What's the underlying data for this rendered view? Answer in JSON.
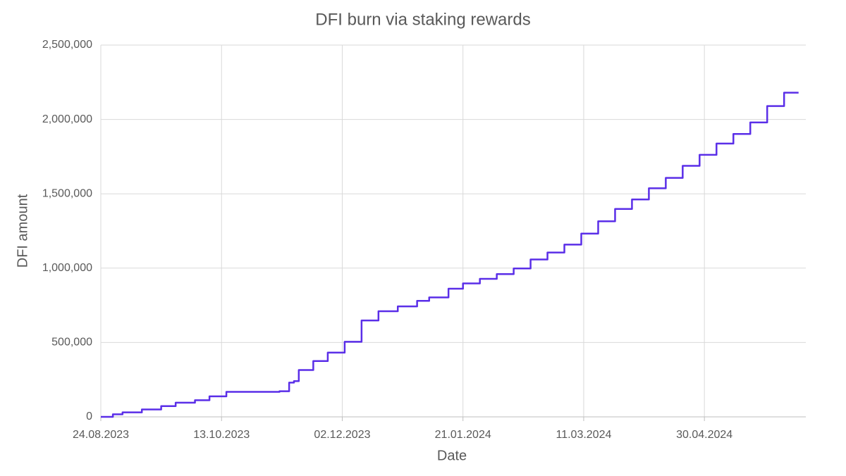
{
  "chart_data": {
    "type": "line",
    "step": "post",
    "title": "DFI burn via staking rewards",
    "x_label": "Date",
    "y_label": "DFI amount",
    "color": "#5a2ee8",
    "grid": true,
    "x": [
      "24.08.2023",
      "29.08.2023",
      "02.09.2023",
      "10.09.2023",
      "18.09.2023",
      "24.09.2023",
      "02.10.2023",
      "08.10.2023",
      "15.10.2023",
      "06.11.2023",
      "10.11.2023",
      "12.11.2023",
      "14.11.2023",
      "20.11.2023",
      "26.11.2023",
      "03.12.2023",
      "10.12.2023",
      "17.12.2023",
      "25.12.2023",
      "02.01.2024",
      "07.01.2024",
      "15.01.2024",
      "21.01.2024",
      "28.01.2024",
      "04.02.2024",
      "11.02.2024",
      "18.02.2024",
      "25.02.2024",
      "03.03.2024",
      "10.03.2024",
      "17.03.2024",
      "24.03.2024",
      "31.03.2024",
      "07.04.2024",
      "14.04.2024",
      "21.04.2024",
      "28.04.2024",
      "05.05.2024",
      "12.05.2024",
      "19.05.2024",
      "26.05.2024",
      "02.06.2024",
      "08.06.2024"
    ],
    "values": [
      0,
      17000,
      30000,
      50000,
      72000,
      95000,
      112000,
      138000,
      168000,
      172000,
      230000,
      240000,
      315000,
      375000,
      432000,
      505000,
      648000,
      710000,
      743000,
      780000,
      803000,
      862000,
      897000,
      928000,
      960000,
      998000,
      1058000,
      1105000,
      1158000,
      1232000,
      1315000,
      1398000,
      1462000,
      1537000,
      1607000,
      1688000,
      1762000,
      1838000,
      1902000,
      1980000,
      2090000,
      2180000,
      2180000
    ],
    "xlim": [
      "24.08.2023",
      "11.06.2024"
    ],
    "xticks": [
      "24.08.2023",
      "13.10.2023",
      "02.12.2023",
      "21.01.2024",
      "11.03.2024",
      "30.04.2024"
    ],
    "ylim": [
      0,
      2500000
    ],
    "yticks": [
      0,
      {
        "value": 500000,
        "label": "500,000"
      },
      {
        "value": 1000000,
        "label": "1,000,000"
      },
      {
        "value": 1500000,
        "label": "1,500,000"
      },
      {
        "value": 2000000,
        "label": "2,000,000"
      },
      {
        "value": 2500000,
        "label": "2,500,000"
      }
    ]
  }
}
